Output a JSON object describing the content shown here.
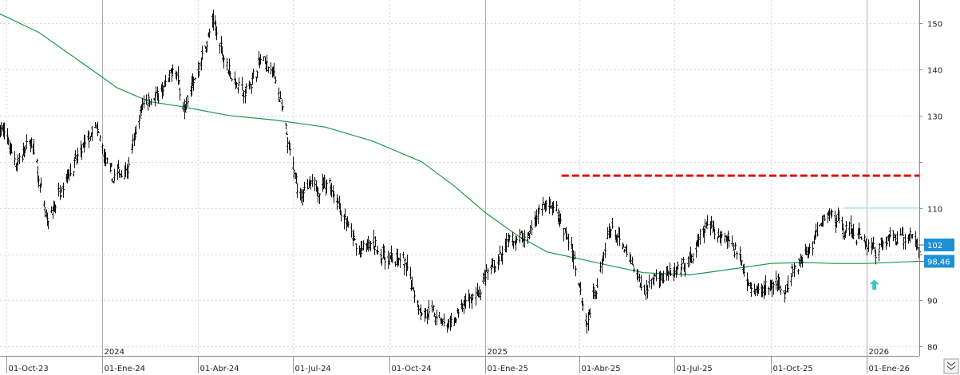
{
  "chart_data": {
    "type": "ohlc",
    "title": "",
    "xlabel": "",
    "ylabel": "",
    "y_axis_position": "right",
    "ylim": [
      78,
      155
    ],
    "y_ticks": [
      80,
      90,
      100,
      110,
      120,
      130,
      140,
      150
    ],
    "y_tick_labels": [
      "80",
      "90",
      "",
      "110",
      "",
      "130",
      "140",
      "150"
    ],
    "x_range": [
      "2023-09-25",
      "2026-02-20"
    ],
    "x_ticks": [
      {
        "date": "2023-10-01",
        "label": "01-Oct-23"
      },
      {
        "date": "2024-01-01",
        "label": "01-Ene-24"
      },
      {
        "date": "2024-04-01",
        "label": "01-Abr-24"
      },
      {
        "date": "2024-07-01",
        "label": "01-Jul-24"
      },
      {
        "date": "2024-10-01",
        "label": "01-Oct-24"
      },
      {
        "date": "2025-01-01",
        "label": "01-Ene-25"
      },
      {
        "date": "2025-04-01",
        "label": "01-Abr-25"
      },
      {
        "date": "2025-07-01",
        "label": "01-Jul-25"
      },
      {
        "date": "2025-10-01",
        "label": "01-Oct-25"
      },
      {
        "date": "2026-01-01",
        "label": "01-Ene-26"
      }
    ],
    "year_markers": [
      {
        "date": "2024-01-01",
        "label": "2024"
      },
      {
        "date": "2025-01-01",
        "label": "2025"
      },
      {
        "date": "2026-01-01",
        "label": "2026"
      }
    ],
    "grid": true,
    "price_path": [
      [
        "2023-09-25",
        128
      ],
      [
        "2023-10-10",
        120
      ],
      [
        "2023-10-25",
        124
      ],
      [
        "2023-11-10",
        106
      ],
      [
        "2023-11-25",
        117
      ],
      [
        "2023-12-10",
        121
      ],
      [
        "2023-12-25",
        127
      ],
      [
        "2024-01-10",
        116
      ],
      [
        "2024-01-25",
        119
      ],
      [
        "2024-02-10",
        134
      ],
      [
        "2024-02-25",
        134
      ],
      [
        "2024-03-10",
        140
      ],
      [
        "2024-03-20",
        131
      ],
      [
        "2024-04-01",
        140
      ],
      [
        "2024-04-15",
        150
      ],
      [
        "2024-05-01",
        140
      ],
      [
        "2024-05-15",
        134
      ],
      [
        "2024-06-01",
        142
      ],
      [
        "2024-06-15",
        138
      ],
      [
        "2024-06-25",
        125
      ],
      [
        "2024-07-05",
        114
      ],
      [
        "2024-07-20",
        114
      ],
      [
        "2024-08-05",
        116
      ],
      [
        "2024-08-20",
        108
      ],
      [
        "2024-09-01",
        100
      ],
      [
        "2024-09-15",
        102
      ],
      [
        "2024-10-01",
        99
      ],
      [
        "2024-10-15",
        98
      ],
      [
        "2024-11-01",
        88
      ],
      [
        "2024-11-15",
        86
      ],
      [
        "2024-11-25",
        84
      ],
      [
        "2024-12-10",
        88
      ],
      [
        "2024-12-25",
        92
      ],
      [
        "2025-01-10",
        98
      ],
      [
        "2025-01-25",
        103
      ],
      [
        "2025-02-10",
        104
      ],
      [
        "2025-02-25",
        111
      ],
      [
        "2025-03-10",
        109
      ],
      [
        "2025-03-25",
        101
      ],
      [
        "2025-04-08",
        86
      ],
      [
        "2025-04-20",
        95
      ],
      [
        "2025-05-01",
        106
      ],
      [
        "2025-05-15",
        100
      ],
      [
        "2025-06-01",
        92
      ],
      [
        "2025-06-15",
        96
      ],
      [
        "2025-07-01",
        95
      ],
      [
        "2025-07-15",
        98
      ],
      [
        "2025-08-01",
        106
      ],
      [
        "2025-08-20",
        104
      ],
      [
        "2025-09-01",
        100
      ],
      [
        "2025-09-15",
        92
      ],
      [
        "2025-10-01",
        93
      ],
      [
        "2025-10-15",
        93
      ],
      [
        "2025-10-25",
        97
      ],
      [
        "2025-11-10",
        102
      ],
      [
        "2025-11-25",
        109
      ],
      [
        "2025-12-10",
        106
      ],
      [
        "2025-12-25",
        104
      ],
      [
        "2026-01-10",
        101
      ],
      [
        "2026-01-25",
        104
      ],
      [
        "2026-02-10",
        104
      ],
      [
        "2026-02-20",
        102
      ]
    ],
    "moving_average": {
      "color": "#1a9a4a",
      "points": [
        [
          "2023-09-25",
          152
        ],
        [
          "2023-11-01",
          148
        ],
        [
          "2023-12-15",
          141
        ],
        [
          "2024-01-15",
          136
        ],
        [
          "2024-02-15",
          133
        ],
        [
          "2024-03-15",
          132
        ],
        [
          "2024-05-01",
          130
        ],
        [
          "2024-06-15",
          129
        ],
        [
          "2024-08-01",
          127.5
        ],
        [
          "2024-09-15",
          124.5
        ],
        [
          "2024-11-01",
          120
        ],
        [
          "2024-12-01",
          115
        ],
        [
          "2025-01-01",
          109
        ],
        [
          "2025-02-01",
          104
        ],
        [
          "2025-03-01",
          100.5
        ],
        [
          "2025-04-01",
          99
        ],
        [
          "2025-05-01",
          97.5
        ],
        [
          "2025-06-01",
          96
        ],
        [
          "2025-07-15",
          95.5
        ],
        [
          "2025-09-01",
          97
        ],
        [
          "2025-10-01",
          98
        ],
        [
          "2025-11-01",
          98.2
        ],
        [
          "2025-12-01",
          98
        ],
        [
          "2026-01-01",
          98
        ],
        [
          "2026-02-20",
          98.46
        ]
      ]
    },
    "resistance_line": {
      "color": "#dd1111",
      "style": "dashed",
      "value": 117,
      "from": "2025-03-15",
      "to": "2026-02-20"
    },
    "faint_line": {
      "color": "#bfe6f0",
      "value": 110,
      "from": "2025-12-10",
      "to": "2026-02-20"
    },
    "markers": [
      {
        "type": "arrow-up",
        "color": "#3cc8c0",
        "date": "2026-01-08",
        "value": 93.5
      }
    ],
    "price_tags": [
      {
        "label": "102",
        "value": 102,
        "color": "#1e90d6"
      },
      {
        "label": "98,46",
        "value": 98.46,
        "color": "#1e90d6"
      }
    ],
    "last_price": 102
  }
}
